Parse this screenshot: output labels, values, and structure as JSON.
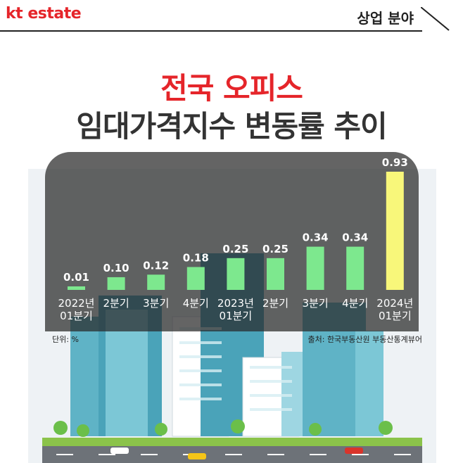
{
  "header": {
    "logo_kt": "kt",
    "logo_estate": "estate",
    "section": "상업 분야"
  },
  "title": {
    "line1": "전국 오피스",
    "line2": "임대가격지수 변동률 추이"
  },
  "footer": {
    "unit": "단위: %",
    "source": "출처: 한국부동산원 부동산통계뷰어"
  },
  "colors": {
    "accent": "#e5252a",
    "bar_green": "#7de88e",
    "bar_highlight": "#f8f77a",
    "panel": "#3a3a3a"
  },
  "chart_data": {
    "type": "bar",
    "categories": [
      "2022년\n01분기",
      "2분기",
      "3분기",
      "4분기",
      "2023년\n01분기",
      "2분기",
      "3분기",
      "4분기",
      "2024년\n01분기"
    ],
    "values": [
      0.01,
      0.1,
      0.12,
      0.18,
      0.25,
      0.25,
      0.34,
      0.34,
      0.93
    ],
    "value_labels": [
      "0.01",
      "0.10",
      "0.12",
      "0.18",
      "0.25",
      "0.25",
      "0.34",
      "0.34",
      "0.93"
    ],
    "highlight_index": 8,
    "title": "전국 오피스 임대가격지수 변동률 추이",
    "ylabel": "",
    "ylim": [
      0,
      0.93
    ]
  }
}
